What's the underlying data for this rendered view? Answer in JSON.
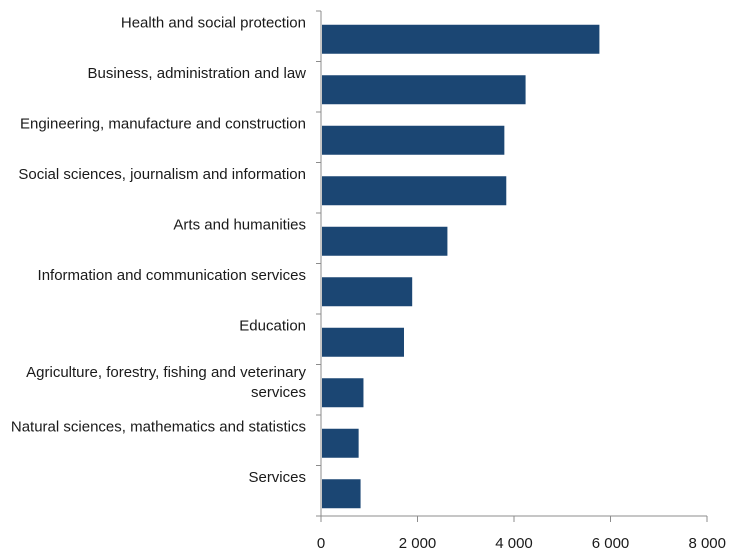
{
  "chart_data": {
    "type": "bar",
    "orientation": "horizontal",
    "title": "",
    "xlabel": "",
    "ylabel": "",
    "categories": [
      "Health and social protection",
      "Business, administration and law",
      "Engineering, manufacture and construction",
      "Social sciences, journalism and information",
      "Arts and humanities",
      "Information and communication services",
      "Education",
      "Agriculture, forestry, fishing and veterinary services",
      "Natural sciences, mathematics and statistics",
      "Services"
    ],
    "values": [
      5770,
      4240,
      3800,
      3840,
      2620,
      1890,
      1720,
      880,
      780,
      820
    ],
    "xlim": [
      0,
      8000
    ],
    "xticks": [
      0,
      2000,
      4000,
      6000,
      8000
    ],
    "xtick_labels": [
      "0",
      "2 000",
      "4 000",
      "6 000",
      "8 000"
    ],
    "bar_color": "#1b4673",
    "grid": false,
    "legend": "none"
  }
}
